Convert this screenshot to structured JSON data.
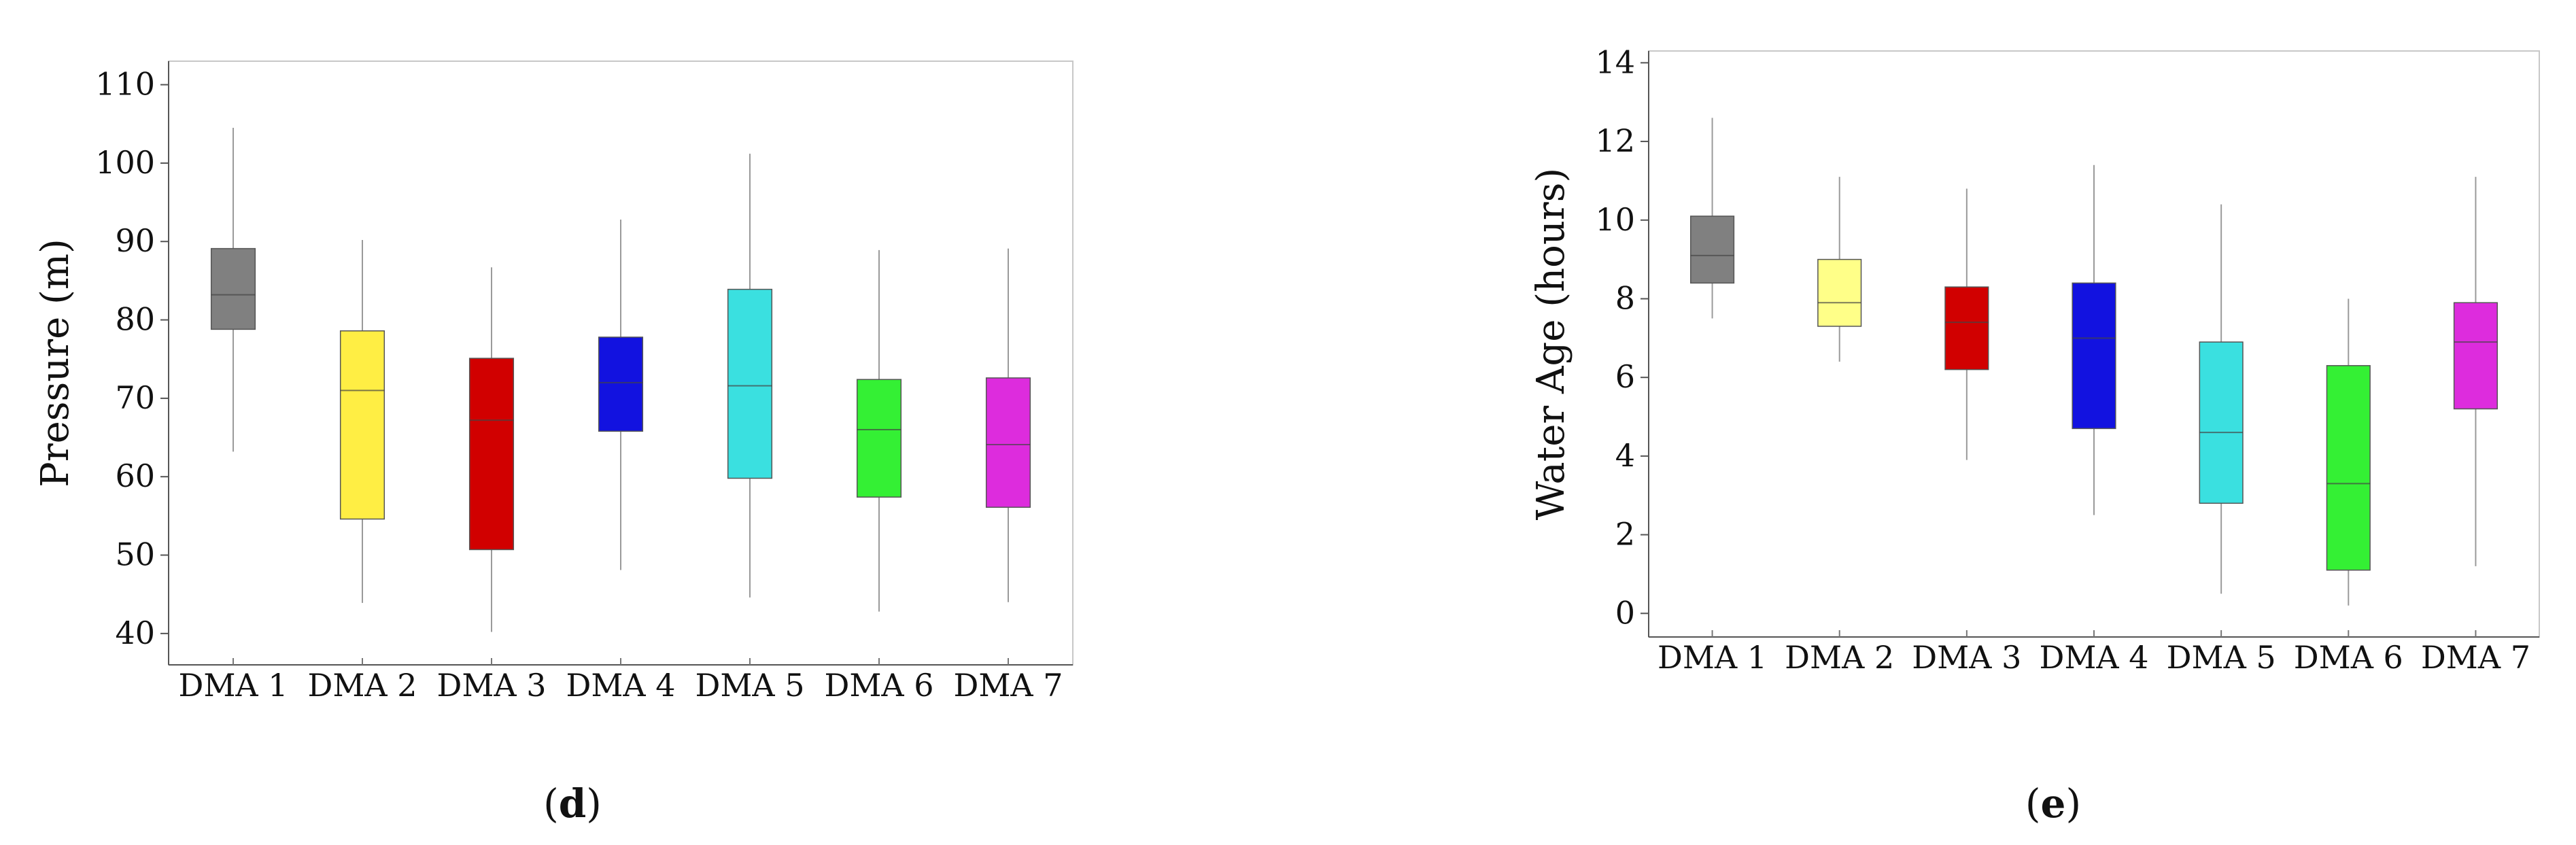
{
  "chart_data": [
    {
      "type": "box",
      "panel_label": "d",
      "ylabel": "Pressure (m)",
      "ylim": [
        36,
        113
      ],
      "yticks": [
        40,
        50,
        60,
        70,
        80,
        90,
        100,
        110
      ],
      "categories": [
        "DMA 1",
        "DMA 2",
        "DMA 3",
        "DMA 4",
        "DMA 5",
        "DMA 6",
        "DMA 7"
      ],
      "boxes": [
        {
          "min": 63.2,
          "q1": 78.8,
          "median": 83.2,
          "q3": 89.1,
          "max": 104.5,
          "color": "#808080"
        },
        {
          "min": 43.9,
          "q1": 54.6,
          "median": 71.0,
          "q3": 78.6,
          "max": 90.2,
          "color": "#ffee44"
        },
        {
          "min": 40.2,
          "q1": 50.7,
          "median": 67.2,
          "q3": 75.1,
          "max": 86.7,
          "color": "#d10000"
        },
        {
          "min": 48.1,
          "q1": 65.8,
          "median": 72.0,
          "q3": 77.8,
          "max": 92.8,
          "color": "#1212e0"
        },
        {
          "min": 44.6,
          "q1": 59.8,
          "median": 71.6,
          "q3": 83.9,
          "max": 101.2,
          "color": "#3ae0e0"
        },
        {
          "min": 42.8,
          "q1": 57.4,
          "median": 66.0,
          "q3": 72.4,
          "max": 88.9,
          "color": "#34f034"
        },
        {
          "min": 44.0,
          "q1": 56.1,
          "median": 64.1,
          "q3": 72.6,
          "max": 89.1,
          "color": "#dd2cdd"
        }
      ]
    },
    {
      "type": "box",
      "panel_label": "e",
      "ylabel": "Water Age (hours)",
      "ylim": [
        -0.6,
        14.3
      ],
      "yticks": [
        0,
        2,
        4,
        6,
        8,
        10,
        12,
        14
      ],
      "categories": [
        "DMA 1",
        "DMA 2",
        "DMA 3",
        "DMA 4",
        "DMA 5",
        "DMA 6",
        "DMA 7"
      ],
      "boxes": [
        {
          "min": 7.5,
          "q1": 8.4,
          "median": 9.1,
          "q3": 10.1,
          "max": 12.6,
          "color": "#808080"
        },
        {
          "min": 6.4,
          "q1": 7.3,
          "median": 7.9,
          "q3": 9.0,
          "max": 11.1,
          "color": "#ffff88"
        },
        {
          "min": 3.9,
          "q1": 6.2,
          "median": 7.4,
          "q3": 8.3,
          "max": 10.8,
          "color": "#d10000"
        },
        {
          "min": 2.5,
          "q1": 4.7,
          "median": 7.0,
          "q3": 8.4,
          "max": 11.4,
          "color": "#1212e0"
        },
        {
          "min": 0.5,
          "q1": 2.8,
          "median": 4.6,
          "q3": 6.9,
          "max": 10.4,
          "color": "#3ae0e0"
        },
        {
          "min": 0.2,
          "q1": 1.1,
          "median": 3.3,
          "q3": 6.3,
          "max": 8.0,
          "color": "#34f034"
        },
        {
          "min": 1.2,
          "q1": 5.2,
          "median": 6.9,
          "q3": 7.9,
          "max": 11.1,
          "color": "#dd2cdd"
        }
      ]
    }
  ]
}
